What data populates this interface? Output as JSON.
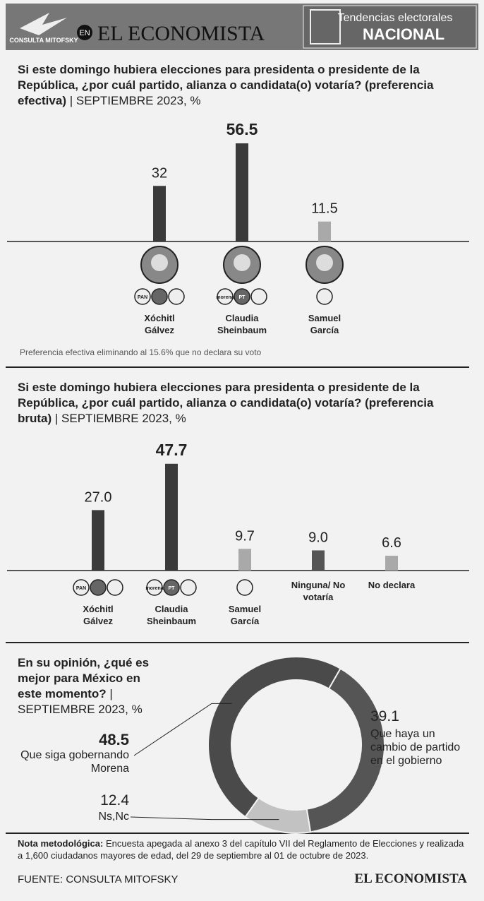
{
  "header": {
    "logo": "CONSULTA MITOFSKY",
    "en": "EN",
    "brand": "EL ECONOMISTA",
    "tag_top": "Tendencias electorales",
    "tag_bottom": "NACIONAL"
  },
  "chart_data": [
    {
      "type": "bar",
      "title": "Si este domingo hubiera elecciones para presidenta o presidente de la República, ¿por cuál partido, alianza o candidata(o) votaría? (preferencia efectiva)",
      "subtitle": "| SEPTIEMBRE 2023, %",
      "categories": [
        "Xóchitl Gálvez",
        "Claudia Sheinbaum",
        "Samuel García"
      ],
      "values": [
        32,
        56.5,
        11.5
      ],
      "colors": [
        "#3a3a3a",
        "#3a3a3a",
        "#a9a9a9"
      ],
      "party_logos": [
        [
          "PAN"
        ],
        [
          "morena",
          "PT"
        ],
        []
      ],
      "note": "Preferencia efectiva eliminando al 15.6% que no declara su voto"
    },
    {
      "type": "bar",
      "title": "Si este domingo hubiera elecciones para presidenta o presidente de la República, ¿por cuál partido, alianza o candidata(o) votaría? (preferencia bruta)",
      "subtitle": "| SEPTIEMBRE 2023, %",
      "categories": [
        "Xóchitl Gálvez",
        "Claudia Sheinbaum",
        "Samuel García",
        "Ninguna/ No votaría",
        "No declara"
      ],
      "values": [
        27,
        47.7,
        9.7,
        9,
        6.6
      ],
      "value_labels": [
        "27.0",
        "47.7",
        "9.7",
        "9.0",
        "6.6"
      ],
      "colors": [
        "#3a3a3a",
        "#3a3a3a",
        "#a9a9a9",
        "#555555",
        "#a9a9a9"
      ],
      "party_logos": [
        [
          "PAN"
        ],
        [
          "morena",
          "PT"
        ],
        []
      ]
    },
    {
      "type": "donut",
      "title": "En su opinión, ¿qué es mejor para México en este momento?",
      "subtitle": "| SEPTIEMBRE 2023, %",
      "categories": [
        "Que haya un cambio de partido en el gobierno",
        "Ns,Nc",
        "Que siga gobernando Morena"
      ],
      "values": [
        39.1,
        12.4,
        48.5
      ],
      "colors": [
        "#555555",
        "#c2c2c2",
        "#4a4a4a"
      ]
    }
  ],
  "footer": {
    "note_label": "Nota metodológica:",
    "note": "Encuesta apegada al anexo 3 del capítulo VII del Reglamento de Elecciones y realizada a 1,600 ciudadanos mayores de edad, del 29 de septiembre al 01 de octubre de 2023.",
    "source": "FUENTE: CONSULTA MITOFSKY",
    "brand": "EL ECONOMISTA"
  }
}
